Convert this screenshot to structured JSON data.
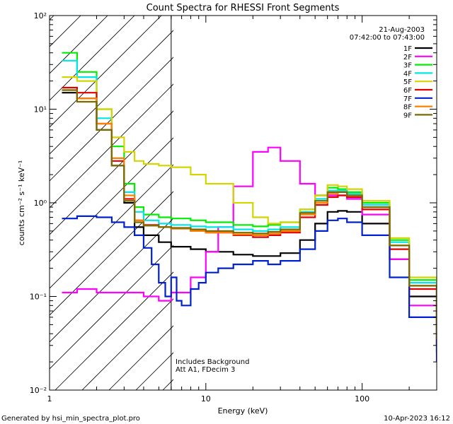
{
  "chart_data": {
    "type": "line",
    "title": "Count Spectra for RHESSI Front Segments",
    "xlabel": "Energy (keV)",
    "ylabel": "counts cm⁻² s⁻¹ keV⁻¹",
    "xscale": "log",
    "yscale": "log",
    "xlim": [
      1,
      300
    ],
    "ylim": [
      0.01,
      100
    ],
    "x_tick_labels": [
      "1",
      "10",
      "100"
    ],
    "y_tick_labels": [
      "10²",
      "10¹",
      "10⁰",
      "10⁻¹",
      "10⁻²"
    ],
    "date": "21-Aug-2003",
    "time_range": "07:42:00 to 07:43:00",
    "annotations": [
      "Includes Background",
      "Att A1, FDecim 3"
    ],
    "hatched_region": {
      "x_from": 1,
      "x_to": 6,
      "label": "excluded low-energy region"
    },
    "vertical_line_at_keV": 6,
    "series": [
      {
        "name": "1F",
        "color": "#000000",
        "x": [
          1.2,
          1.5,
          2.0,
          2.5,
          3.0,
          3.5,
          4.0,
          5.0,
          6.0,
          8.0,
          10,
          15,
          20,
          25,
          30,
          40,
          50,
          60,
          70,
          80,
          100,
          150,
          200,
          300
        ],
        "y": [
          15,
          13,
          6,
          2.5,
          1.0,
          0.55,
          0.45,
          0.38,
          0.34,
          0.32,
          0.3,
          0.28,
          0.27,
          0.27,
          0.29,
          0.4,
          0.6,
          0.8,
          0.82,
          0.8,
          0.6,
          0.25,
          0.1,
          0.025
        ]
      },
      {
        "name": "2F",
        "color": "#ff00ff",
        "x": [
          1.2,
          1.5,
          2.0,
          2.5,
          3.0,
          4.0,
          5.0,
          6.0,
          8.0,
          10,
          12,
          15,
          20,
          25,
          30,
          40,
          50,
          60,
          70,
          80,
          100,
          150,
          200,
          300
        ],
        "y": [
          0.11,
          0.12,
          0.11,
          0.11,
          0.11,
          0.1,
          0.09,
          0.11,
          0.16,
          0.3,
          0.55,
          1.5,
          3.5,
          3.9,
          2.8,
          1.6,
          1.2,
          1.2,
          1.2,
          1.1,
          0.75,
          0.25,
          0.08,
          0.03
        ]
      },
      {
        "name": "3F",
        "color": "#00ee00",
        "x": [
          1.2,
          1.5,
          2.0,
          2.5,
          3.0,
          3.5,
          4.0,
          5.0,
          6.0,
          8.0,
          10,
          15,
          20,
          25,
          30,
          40,
          50,
          60,
          70,
          80,
          100,
          150,
          200,
          300
        ],
        "y": [
          40,
          25,
          10,
          4.0,
          1.6,
          0.9,
          0.75,
          0.7,
          0.68,
          0.65,
          0.62,
          0.58,
          0.56,
          0.58,
          0.62,
          0.85,
          1.2,
          1.45,
          1.4,
          1.3,
          1.0,
          0.4,
          0.15,
          0.04
        ]
      },
      {
        "name": "4F",
        "color": "#00e5e5",
        "x": [
          1.2,
          1.5,
          2.0,
          2.5,
          3.0,
          3.5,
          4.0,
          5.0,
          6.0,
          8.0,
          10,
          15,
          20,
          25,
          30,
          40,
          50,
          60,
          70,
          80,
          100,
          150,
          200,
          300
        ],
        "y": [
          33,
          22,
          8.0,
          3.0,
          1.3,
          0.8,
          0.65,
          0.6,
          0.58,
          0.56,
          0.55,
          0.52,
          0.5,
          0.52,
          0.55,
          0.8,
          1.1,
          1.35,
          1.35,
          1.25,
          0.95,
          0.38,
          0.14,
          0.035
        ]
      },
      {
        "name": "5F",
        "color": "#d4d400",
        "x": [
          1.2,
          1.5,
          2.0,
          2.5,
          3.0,
          3.5,
          4.0,
          5.0,
          6.0,
          8.0,
          10,
          15,
          20,
          25,
          30,
          40,
          50,
          60,
          70,
          80,
          100,
          150,
          200,
          300
        ],
        "y": [
          22,
          20,
          10,
          5.0,
          3.5,
          2.8,
          2.6,
          2.5,
          2.4,
          2.0,
          1.6,
          1.0,
          0.7,
          0.6,
          0.62,
          0.85,
          1.2,
          1.55,
          1.5,
          1.4,
          1.05,
          0.42,
          0.16,
          0.045
        ]
      },
      {
        "name": "6F",
        "color": "#e00000",
        "x": [
          1.2,
          1.5,
          2.0,
          2.5,
          3.0,
          3.5,
          4.0,
          5.0,
          6.0,
          8.0,
          10,
          15,
          20,
          25,
          30,
          40,
          50,
          60,
          70,
          80,
          100,
          150,
          200,
          300
        ],
        "y": [
          17,
          15,
          7.0,
          2.8,
          1.1,
          0.65,
          0.58,
          0.55,
          0.53,
          0.5,
          0.48,
          0.45,
          0.43,
          0.45,
          0.48,
          0.7,
          0.95,
          1.15,
          1.2,
          1.15,
          0.85,
          0.32,
          0.12,
          0.03
        ]
      },
      {
        "name": "7F",
        "color": "#0020d0",
        "x": [
          1.2,
          1.5,
          2.0,
          2.5,
          3.0,
          3.5,
          4.0,
          4.5,
          5.0,
          5.5,
          6.0,
          6.5,
          7.0,
          8.0,
          9.0,
          10,
          12,
          15,
          20,
          25,
          30,
          40,
          50,
          60,
          70,
          80,
          100,
          150,
          200,
          300
        ],
        "y": [
          0.68,
          0.72,
          0.7,
          0.62,
          0.55,
          0.45,
          0.33,
          0.22,
          0.14,
          0.1,
          0.16,
          0.09,
          0.08,
          0.12,
          0.14,
          0.18,
          0.2,
          0.22,
          0.24,
          0.22,
          0.24,
          0.32,
          0.5,
          0.65,
          0.68,
          0.62,
          0.45,
          0.16,
          0.06,
          0.02
        ]
      },
      {
        "name": "8F",
        "color": "#ff8000",
        "x": [
          1.2,
          1.5,
          2.0,
          2.5,
          3.0,
          3.5,
          4.0,
          5.0,
          6.0,
          8.0,
          10,
          15,
          20,
          25,
          30,
          40,
          50,
          60,
          70,
          80,
          100,
          150,
          200,
          300
        ],
        "y": [
          16,
          13,
          7.0,
          3.0,
          1.2,
          0.65,
          0.57,
          0.55,
          0.53,
          0.5,
          0.48,
          0.46,
          0.45,
          0.47,
          0.5,
          0.75,
          1.0,
          1.25,
          1.3,
          1.2,
          0.9,
          0.35,
          0.13,
          0.035
        ]
      },
      {
        "name": "9F",
        "color": "#7a6a00",
        "x": [
          1.2,
          1.5,
          2.0,
          2.5,
          3.0,
          3.5,
          4.0,
          5.0,
          6.0,
          8.0,
          10,
          15,
          20,
          25,
          30,
          40,
          50,
          60,
          70,
          80,
          100,
          150,
          200,
          300
        ],
        "y": [
          16,
          12,
          6.0,
          2.5,
          1.05,
          0.62,
          0.57,
          0.55,
          0.54,
          0.52,
          0.5,
          0.48,
          0.47,
          0.49,
          0.52,
          0.78,
          1.05,
          1.3,
          1.3,
          1.2,
          0.9,
          0.35,
          0.13,
          0.035
        ]
      }
    ]
  },
  "footer": {
    "generated_by": "Generated by hsi_min_spectra_plot.pro",
    "timestamp": "10-Apr-2023 16:12"
  },
  "colors": {
    "background": "#ffffff",
    "axis": "#000000"
  }
}
